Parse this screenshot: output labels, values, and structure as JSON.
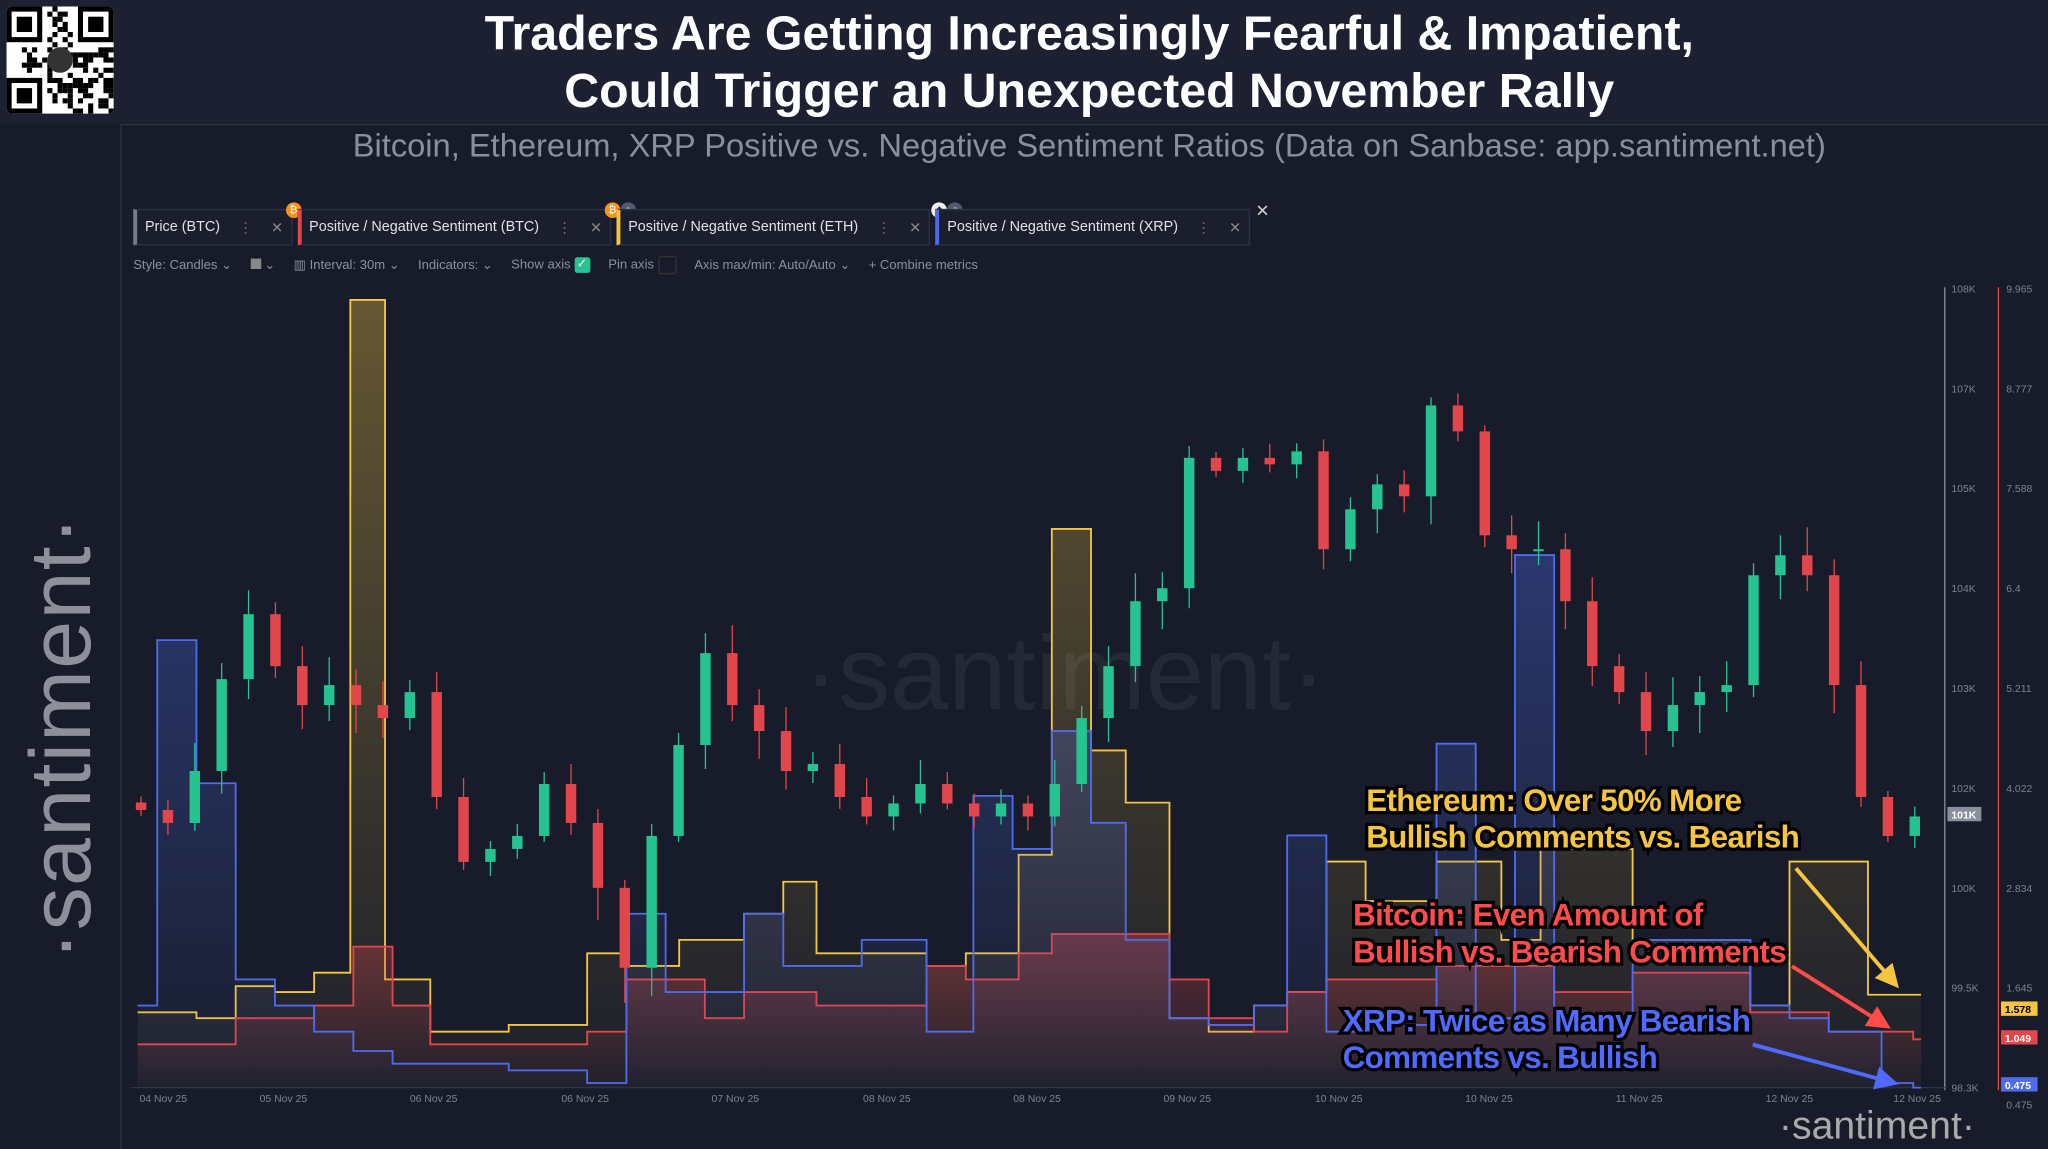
{
  "header": {
    "title_line1": "Traders Are Getting Increasingly Fearful & Impatient,",
    "title_line2": "Could Trigger an Unexpected November Rally",
    "subtitle": "Bitcoin, Ethereum, XRP Positive vs. Negative Sentiment Ratios (Data on Sanbase: app.santiment.net)"
  },
  "logo": {
    "text": "·santiment·",
    "qr_icon": "qr-code-icon"
  },
  "tabs": [
    {
      "label": "Price (BTC)",
      "color": "#777b88",
      "badges": []
    },
    {
      "label": "Positive / Negative Sentiment (BTC)",
      "color": "#e0464b",
      "badges": [
        "bitcoin-icon"
      ]
    },
    {
      "label": "Positive / Negative Sentiment (ETH)",
      "color": "#f5c542",
      "badges": [
        "bitcoin-icon",
        "lock-icon"
      ]
    },
    {
      "label": "Positive / Negative Sentiment (XRP)",
      "color": "#4f6bed",
      "badges": [
        "ethereum-icon",
        "lock-icon"
      ]
    }
  ],
  "toolbar": {
    "style": "Style: Candles",
    "interval": "Interval: 30m",
    "indicators": "Indicators:",
    "show_axis": "Show axis",
    "show_axis_checked": true,
    "pin_axis": "Pin axis",
    "pin_axis_checked": false,
    "axis_minmax": "Axis max/min: Auto/Auto",
    "combine": "Combine metrics"
  },
  "chart_data": {
    "type": "line",
    "title": "",
    "x_ticks": [
      "04 Nov 25",
      "05 Nov 25",
      "06 Nov 25",
      "06 Nov 25",
      "07 Nov 25",
      "08 Nov 25",
      "08 Nov 25",
      "09 Nov 25",
      "10 Nov 25",
      "10 Nov 25",
      "11 Nov 25",
      "12 Nov 25",
      "12 Nov 25"
    ],
    "price_axis": {
      "ticks": [
        "108K",
        "107K",
        "105K",
        "104K",
        "103K",
        "102K",
        "100K",
        "99.5K",
        "98.3K"
      ],
      "current_label": "101K"
    },
    "sentiment_axis": {
      "ticks": [
        "9.965",
        "8.777",
        "7.588",
        "6.4",
        "5.211",
        "4.022",
        "2.834",
        "1.645"
      ],
      "min": "0.475"
    },
    "price_btc": {
      "name": "Price (BTC)",
      "style": "candles",
      "up_color": "#26c28f",
      "down_color": "#e0464b",
      "closes": [
        101.56,
        101.3,
        102.17,
        103.09,
        103.74,
        103.22,
        102.83,
        103.03,
        102.83,
        102.7,
        102.96,
        101.82,
        100.52,
        100.78,
        101.04,
        102.04,
        101.3,
        100.0,
        99.6,
        101.04,
        102.43,
        103.35,
        102.83,
        102.57,
        102.17,
        102.24,
        101.82,
        101.43,
        101.69,
        102.04,
        101.69,
        101.43,
        101.69,
        101.43,
        102.04,
        102.7,
        103.22,
        103.87,
        104.0,
        105.61,
        105.35,
        105.61,
        105.48,
        105.74,
        104.39,
        104.79,
        105.08,
        104.92,
        106.66,
        106.14,
        104.53,
        104.39,
        104.39,
        103.87,
        103.22,
        102.96,
        102.57,
        102.83,
        102.96,
        103.03,
        104.13,
        104.33,
        104.13,
        103.03,
        101.82,
        101.04,
        101.43
      ]
    },
    "series": [
      {
        "name": "Positive / Negative Sentiment (ETH)",
        "color": "#f5c542",
        "last": "1.578",
        "points": [
          [
            -0.17,
            1.37
          ],
          [
            0.22,
            1.3
          ],
          [
            0.48,
            1.68
          ],
          [
            0.74,
            1.61
          ],
          [
            1.0,
            1.84
          ],
          [
            1.24,
            9.83
          ],
          [
            1.47,
            1.76
          ],
          [
            1.77,
            1.14
          ],
          [
            2.29,
            1.22
          ],
          [
            2.81,
            2.07
          ],
          [
            3.07,
            1.92
          ],
          [
            3.42,
            2.23
          ],
          [
            3.85,
            2.54
          ],
          [
            4.11,
            2.92
          ],
          [
            4.33,
            2.07
          ],
          [
            4.63,
            2.07
          ],
          [
            5.06,
            1.92
          ],
          [
            5.32,
            2.07
          ],
          [
            5.67,
            3.24
          ],
          [
            5.89,
            7.11
          ],
          [
            6.15,
            4.48
          ],
          [
            6.38,
            3.86
          ],
          [
            6.67,
            1.3
          ],
          [
            6.93,
            1.14
          ],
          [
            7.23,
            1.45
          ],
          [
            7.45,
            1.61
          ],
          [
            7.71,
            3.16
          ],
          [
            7.97,
            2.69
          ],
          [
            8.44,
            3.16
          ],
          [
            8.87,
            2.23
          ],
          [
            9.13,
            3.31
          ],
          [
            9.74,
            2.23
          ],
          [
            10.52,
            1.45
          ],
          [
            10.78,
            3.16
          ],
          [
            11.04,
            3.16
          ],
          [
            11.3,
            1.578
          ],
          [
            11.6,
            1.578
          ]
        ]
      },
      {
        "name": "Positive / Negative Sentiment (BTC)",
        "color": "#e0464b",
        "last": "1.049",
        "points": [
          [
            -0.17,
            0.99
          ],
          [
            0.22,
            0.99
          ],
          [
            0.48,
            1.3
          ],
          [
            1.0,
            1.45
          ],
          [
            1.26,
            2.15
          ],
          [
            1.52,
            1.45
          ],
          [
            1.77,
            0.99
          ],
          [
            2.29,
            0.99
          ],
          [
            2.81,
            1.14
          ],
          [
            3.07,
            1.76
          ],
          [
            3.59,
            1.3
          ],
          [
            3.85,
            1.61
          ],
          [
            4.33,
            1.45
          ],
          [
            5.06,
            1.92
          ],
          [
            5.32,
            1.76
          ],
          [
            5.67,
            2.07
          ],
          [
            5.89,
            2.3
          ],
          [
            6.38,
            2.3
          ],
          [
            6.67,
            1.76
          ],
          [
            6.93,
            1.3
          ],
          [
            7.23,
            1.14
          ],
          [
            7.45,
            1.61
          ],
          [
            7.71,
            1.76
          ],
          [
            8.44,
            1.92
          ],
          [
            9.22,
            1.61
          ],
          [
            9.74,
            1.84
          ],
          [
            10.52,
            1.37
          ],
          [
            11.04,
            1.14
          ],
          [
            11.6,
            1.049
          ]
        ]
      },
      {
        "name": "Positive / Negative Sentiment (XRP)",
        "color": "#4f6bed",
        "last": "0.475",
        "points": [
          [
            -0.17,
            1.45
          ],
          [
            -0.04,
            5.79
          ],
          [
            0.22,
            4.09
          ],
          [
            0.48,
            1.76
          ],
          [
            0.74,
            1.45
          ],
          [
            1.0,
            1.14
          ],
          [
            1.26,
            0.91
          ],
          [
            1.52,
            0.76
          ],
          [
            1.77,
            0.76
          ],
          [
            2.29,
            0.68
          ],
          [
            2.81,
            0.53
          ],
          [
            3.07,
            2.54
          ],
          [
            3.33,
            1.61
          ],
          [
            3.85,
            2.54
          ],
          [
            4.11,
            1.92
          ],
          [
            4.63,
            2.23
          ],
          [
            5.06,
            1.14
          ],
          [
            5.37,
            3.94
          ],
          [
            5.63,
            3.31
          ],
          [
            5.89,
            4.71
          ],
          [
            6.15,
            3.62
          ],
          [
            6.38,
            2.23
          ],
          [
            6.67,
            1.3
          ],
          [
            6.93,
            1.22
          ],
          [
            7.23,
            1.45
          ],
          [
            7.45,
            3.47
          ],
          [
            7.71,
            1.14
          ],
          [
            7.97,
            1.22
          ],
          [
            8.44,
            4.56
          ],
          [
            8.7,
            1.3
          ],
          [
            8.96,
            6.8
          ],
          [
            9.22,
            1.3
          ],
          [
            9.74,
            2.23
          ],
          [
            10.52,
            1.45
          ],
          [
            10.78,
            1.3
          ],
          [
            11.04,
            1.14
          ],
          [
            11.39,
            0.53
          ],
          [
            11.6,
            0.475
          ]
        ]
      }
    ],
    "grid": false,
    "annotations": [
      {
        "text_line1": "Ethereum: Over 50% More",
        "text_line2": "Bullish Comments vs. Bearish",
        "color": "#f5c542"
      },
      {
        "text_line1": "Bitcoin: Even Amount of",
        "text_line2": "Bullish vs. Bearish Comments",
        "color": "#ff4b4b"
      },
      {
        "text_line1": "XRP: Twice as Many Bearish",
        "text_line2": "Comments vs. Bullish",
        "color": "#4f6bff"
      }
    ],
    "watermark": "·santiment·"
  }
}
